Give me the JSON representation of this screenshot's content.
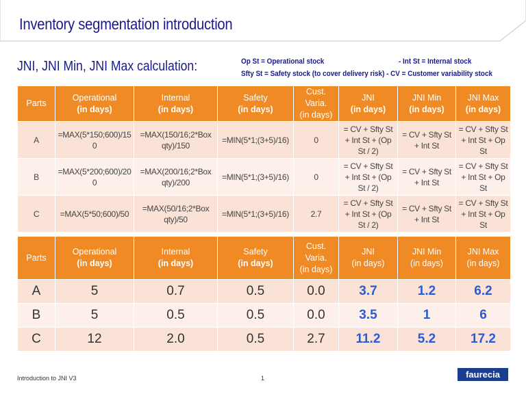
{
  "header": {
    "title": "Inventory segmentation introduction"
  },
  "section": {
    "title": "JNI, JNI Min, JNI Max calculation:",
    "notes": [
      "Op St = Operational stock",
      "-  Int St = Internal stock",
      "Sfty St = Safety stock (to cover delivery risk)  -  CV = Customer variability stock"
    ]
  },
  "tables": [
    {
      "header": [
        {
          "label": "Parts"
        },
        {
          "label": "Operational",
          "unit": "(in days)"
        },
        {
          "label": "Internal",
          "unit": "(in days)"
        },
        {
          "label": "Safety",
          "unit": "(in days)"
        },
        {
          "label": "Cust. Varia.",
          "unit": "(in days)"
        },
        {
          "label": "JNI",
          "unit": "(in days)"
        },
        {
          "label": "JNI Min",
          "unit": "(in days)"
        },
        {
          "label": "JNI Max",
          "unit": "(in days)"
        }
      ],
      "rows": [
        [
          "A",
          "=MAX(5*150;600)/150",
          "=MAX(150/16;2*Box qty)/150",
          "=MIN(5*1;(3+5)/16)",
          "0",
          "= CV + Sfty St + Int St + (Op St / 2)",
          "= CV + Sfty St + Int St",
          "= CV + Sfty St + Int St + Op St"
        ],
        [
          "B",
          "=MAX(5*200;600)/200",
          "=MAX(200/16;2*Box qty)/200",
          "=MIN(5*1;(3+5)/16)",
          "0",
          "= CV + Sfty St + Int St + (Op St / 2)",
          "= CV + Sfty St + Int St",
          "= CV + Sfty St + Int St + Op St"
        ],
        [
          "C",
          "=MAX(5*50;600)/50",
          "=MAX(50/16;2*Box qty)/50",
          "=MIN(5*1;(3+5)/16)",
          "2.7",
          "= CV + Sfty St + Int St + (Op St / 2)",
          "= CV + Sfty St + Int St",
          "= CV + Sfty St + Int St + Op St"
        ]
      ]
    },
    {
      "header": [
        {
          "label": "Parts"
        },
        {
          "label": "Operational",
          "unit": "(in days)"
        },
        {
          "label": "Internal",
          "unit": "(in days)"
        },
        {
          "label": "Safety",
          "unit": "(in days)"
        },
        {
          "label": "Cust. Varia.",
          "unit": "(in days)"
        },
        {
          "label": "JNI",
          "unit": "(in days)"
        },
        {
          "label": "JNI Min",
          "unit": "(in days)"
        },
        {
          "label": "JNI Max",
          "unit": "(in days)"
        }
      ],
      "rows": [
        [
          "A",
          "5",
          "0.7",
          "0.5",
          "0.0",
          "3.7",
          "1.2",
          "6.2"
        ],
        [
          "B",
          "5",
          "0.5",
          "0.5",
          "0.0",
          "3.5",
          "1",
          "6"
        ],
        [
          "C",
          "12",
          "2.0",
          "0.5",
          "2.7",
          "11.2",
          "5.2",
          "17.2"
        ]
      ]
    }
  ],
  "footer": {
    "doc": "Introduction to JNI V3",
    "page": "1",
    "logo": "faurecia"
  }
}
